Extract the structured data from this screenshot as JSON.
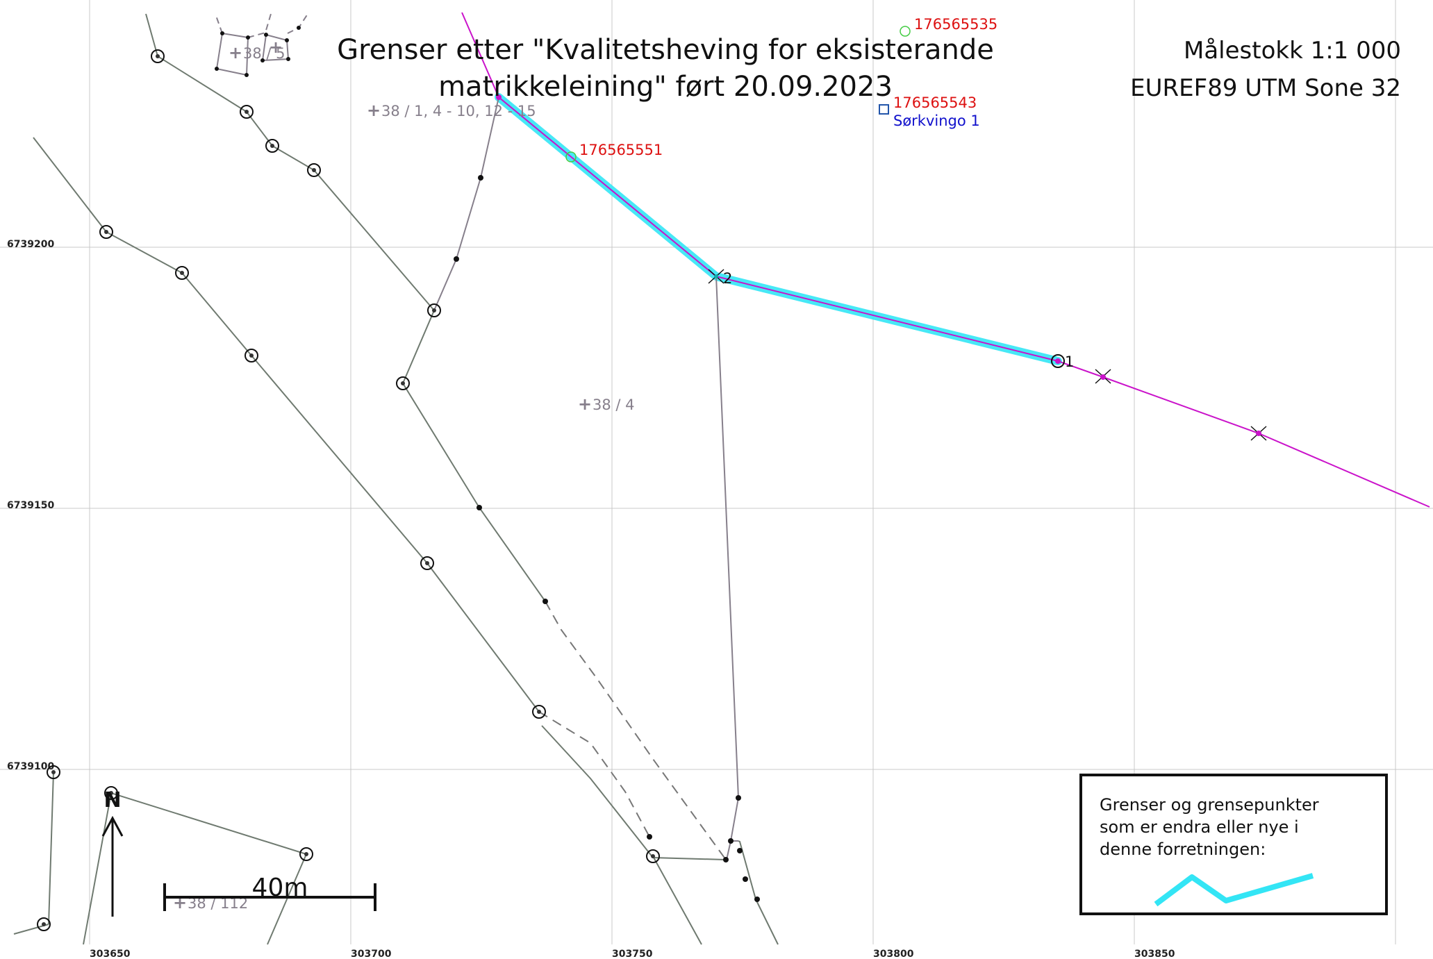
{
  "title": {
    "line1": "Grenser etter \"Kvalitetsheving for eksisterande",
    "line2": "matrikkeleining\" ført 20.09.2023"
  },
  "scale_info": {
    "scale": "Målestokk 1:1 000",
    "crs": "EUREF89 UTM Sone 32"
  },
  "grid": {
    "eastings": [
      "303650",
      "303700",
      "303750",
      "303800",
      "303850"
    ],
    "northings": [
      "6739200",
      "6739150",
      "6739100"
    ]
  },
  "parcels": {
    "top": "38 / 1, 4 - 10, 12 - 15",
    "main": "38 / 4",
    "bottom": "38 / 112",
    "small": "38 / 5"
  },
  "points": {
    "p1": "176565535",
    "p2": "176565543",
    "p2_name": "Sørkvingo 1",
    "p3": "176565551"
  },
  "boundary_points": {
    "a": "1",
    "b": "2"
  },
  "north_arrow": {
    "label": "N"
  },
  "scale_bar": {
    "label": "40m"
  },
  "legend": {
    "line1": "Grenser og grensepunkter",
    "line2": "som er endra eller nye i",
    "line3": "denne forretningen:"
  },
  "colors": {
    "changed_boundary": "#33e5f5",
    "cadastral_line": "#ca13ca",
    "point_label": "#dd1111",
    "address_label": "#1111cc",
    "grid": "#c8c8c8",
    "boundary": "#6f7a70"
  }
}
